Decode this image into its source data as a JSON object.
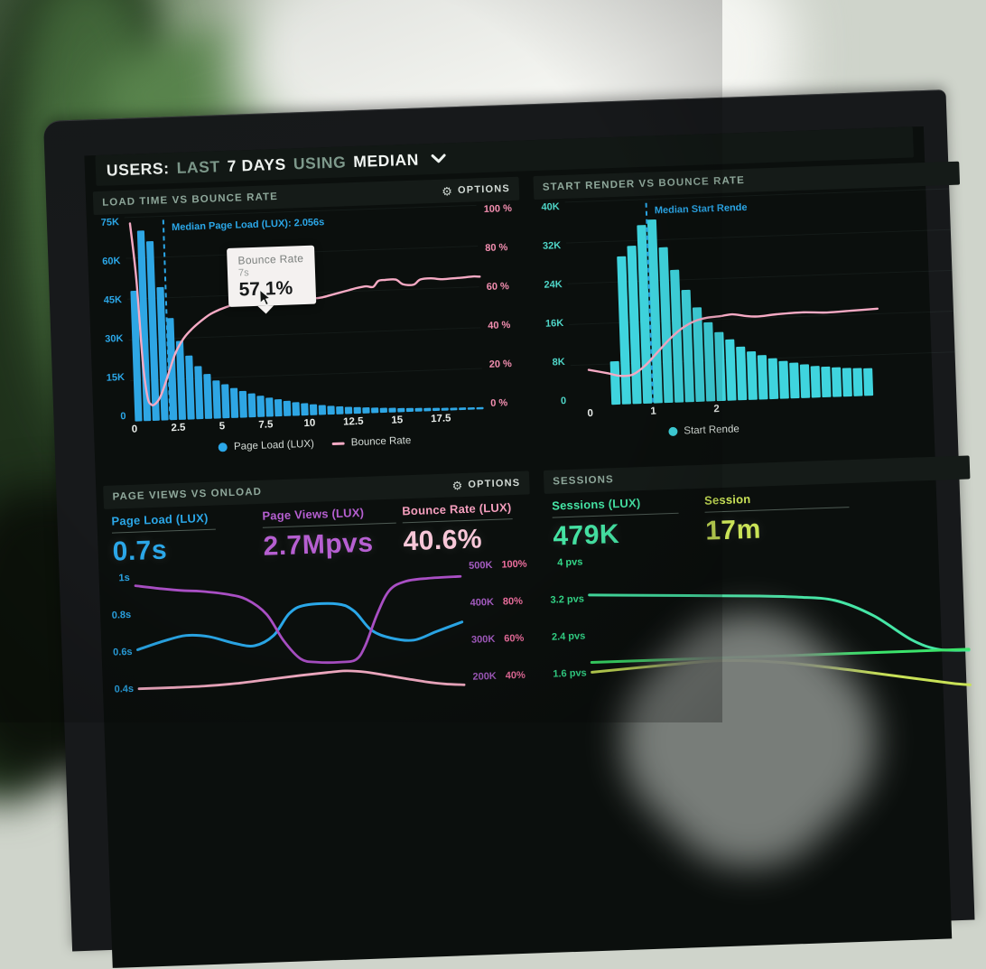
{
  "ui": {
    "options_label": "OPTIONS"
  },
  "header": {
    "users": "USERS:",
    "last": "LAST",
    "days": "7 DAYS",
    "using": "USING",
    "median": "MEDIAN"
  },
  "colors": {
    "blue": "#2BA7E8",
    "cyan": "#3FD4DE",
    "teal_label": "#4FD6C8",
    "pink_line": "#F6AAC4",
    "pink_label": "#F48FB1",
    "purple": "#B05FC4",
    "purple_label": "#A55CC2",
    "magenta_pct": "#EE6F9F",
    "mint": "#46E6A6",
    "green_flat": "#3BE36B",
    "lime": "#C9E257",
    "title_text": "#8FA89B",
    "screen_bg": "#0B0F0D",
    "panel_header_bg": "#151B18"
  },
  "panels": {
    "load_time": {
      "title": "LOAD TIME VS BOUNCE RATE",
      "y_left": [
        "75K",
        "60K",
        "45K",
        "30K",
        "15K",
        "0"
      ],
      "y_right": [
        "100 %",
        "80 %",
        "60 %",
        "40 %",
        "20 %",
        "0 %"
      ],
      "median_label": "Median Page Load (LUX): 2.056s",
      "tooltip": {
        "title": "Bounce Rate",
        "time": "7s",
        "value": "57.1%"
      },
      "legend": [
        {
          "label": "Page Load (LUX)",
          "color": "#2BA7E8",
          "marker": "dot"
        },
        {
          "label": "Bounce Rate",
          "color": "#F6AAC4",
          "marker": "line"
        }
      ],
      "chart_data": {
        "type": "bar+line",
        "x_unit": "seconds",
        "x0": 0,
        "bin": 0.5,
        "ppu": 19.4,
        "off": 3,
        "pad": 34,
        "ymax": 75,
        "grid": 5,
        "bar_color": "#2EA6E4",
        "bars": [
          48,
          70,
          66,
          49,
          37.5,
          29,
          23.5,
          19.5,
          16.5,
          14,
          12.5,
          11,
          9.8,
          8.8,
          7.8,
          7,
          6.3,
          5.6,
          5,
          4.5,
          4,
          3.6,
          3.2,
          2.9,
          2.6,
          2.4,
          2.2,
          2,
          1.8,
          1.7,
          1.5,
          1.4,
          1.3,
          1.2,
          1.1,
          1,
          0.95,
          0.9,
          0.85,
          0.8
        ],
        "line_color": "#F6AAC4",
        "line_max": 100,
        "line": [
          [
            0.15,
            97
          ],
          [
            0.4,
            70
          ],
          [
            0.6,
            30
          ],
          [
            0.8,
            12
          ],
          [
            1,
            8
          ],
          [
            1.2,
            8
          ],
          [
            1.5,
            11
          ],
          [
            1.8,
            17
          ],
          [
            2.1,
            24
          ],
          [
            2.5,
            33
          ],
          [
            3,
            40
          ],
          [
            3.5,
            44.5
          ],
          [
            4,
            48
          ],
          [
            4.5,
            51
          ],
          [
            5,
            53
          ],
          [
            5.5,
            54.5
          ],
          [
            6,
            55.8
          ],
          [
            6.5,
            56.6
          ],
          [
            7,
            57.1
          ],
          [
            7.5,
            57.6
          ],
          [
            8,
            58
          ],
          [
            8.5,
            58.2
          ],
          [
            9,
            58.2
          ],
          [
            9.5,
            58
          ],
          [
            10,
            57.6
          ],
          [
            10.5,
            57.2
          ],
          [
            11,
            57.6
          ],
          [
            11.5,
            58.6
          ],
          [
            12,
            59.6
          ],
          [
            12.5,
            60.6
          ],
          [
            13,
            61.6
          ],
          [
            13.5,
            62.2
          ],
          [
            13.9,
            61.8
          ],
          [
            14.2,
            64.6
          ],
          [
            14.6,
            65
          ],
          [
            15.2,
            65
          ],
          [
            15.6,
            62.6
          ],
          [
            16.2,
            62.2
          ],
          [
            16.6,
            64.6
          ],
          [
            17.2,
            65
          ],
          [
            17.8,
            64.4
          ],
          [
            18.4,
            64.6
          ],
          [
            19,
            64.8
          ],
          [
            19.6,
            65.2
          ],
          [
            20,
            65
          ]
        ],
        "median": {
          "x": 2.056
        },
        "median_color": "#2BA7E8",
        "xticks": [
          {
            "v": 0,
            "label": "0"
          },
          {
            "v": 2.5,
            "label": "2.5"
          },
          {
            "v": 5,
            "label": "5"
          },
          {
            "v": 7.5,
            "label": "7.5"
          },
          {
            "v": 10,
            "label": "10"
          },
          {
            "v": 12.5,
            "label": "12.5"
          },
          {
            "v": 15,
            "label": "15"
          },
          {
            "v": 17.5,
            "label": "17.5"
          }
        ]
      }
    },
    "start_render": {
      "title": "START RENDER VS BOUNCE RATE",
      "y_left": [
        "40K",
        "32K",
        "24K",
        "16K",
        "8K",
        "0"
      ],
      "median_label": "Median Start Rende",
      "legend": [
        {
          "label": "Start Rende",
          "color": "#3FD4DE",
          "marker": "dot"
        }
      ],
      "chart_data": {
        "type": "bar+line",
        "x_unit": "seconds",
        "x0": 0.33,
        "bin": 0.1667,
        "ppu": 70,
        "off": 20,
        "pad": 34,
        "ymax": 40,
        "grid": 5,
        "bar_color": "#3FD4DE",
        "bars": [
          8.5,
          29,
          31,
          35,
          36,
          30.5,
          26,
          22,
          18.5,
          15.5,
          13.5,
          12,
          10.5,
          9.5,
          8.7,
          8,
          7.4,
          7,
          6.6,
          6.2,
          6,
          5.8,
          5.6,
          5.5,
          5.4
        ],
        "line_color": "#F6AAC4",
        "line_max": 40,
        "line": [
          [
            0,
            7
          ],
          [
            0.3,
            6.2
          ],
          [
            0.5,
            5.6
          ],
          [
            0.7,
            5.8
          ],
          [
            0.9,
            7.5
          ],
          [
            1.1,
            10
          ],
          [
            1.3,
            12.5
          ],
          [
            1.5,
            14.5
          ],
          [
            1.7,
            15.8
          ],
          [
            1.9,
            16.4
          ],
          [
            2.1,
            16.6
          ],
          [
            2.3,
            16.9
          ],
          [
            2.5,
            16.5
          ],
          [
            2.7,
            16.3
          ],
          [
            3,
            16.6
          ],
          [
            3.4,
            16.8
          ],
          [
            3.8,
            16.6
          ],
          [
            4.2,
            16.8
          ],
          [
            4.6,
            17
          ]
        ],
        "median": {
          "x": 1.0
        },
        "median_color": "#2BA7E8",
        "xticks": [
          {
            "v": 0,
            "label": "0"
          },
          {
            "v": 1,
            "label": "1"
          },
          {
            "v": 2,
            "label": "2"
          }
        ]
      }
    },
    "page_views": {
      "title": "PAGE VIEWS VS ONLOAD",
      "stats": [
        {
          "label": "Page Load (LUX)",
          "value": "0.7s",
          "color": "#2BA7E8"
        },
        {
          "label": "Page Views (LUX)",
          "value": "2.7Mpvs",
          "color": "#B65FD1"
        },
        {
          "label": "Bounce Rate (LUX)",
          "value": "40.6%",
          "color": "#F8C7D8"
        }
      ],
      "y_left": [
        "1s",
        "0.8s",
        "0.6s",
        "0.4s"
      ],
      "y_right_k": [
        "500K",
        "400K",
        "300K",
        "200K"
      ],
      "y_right_pct": [
        "100%",
        "80%",
        "60%",
        "40%"
      ],
      "chart_data": {
        "type": "line",
        "series": [
          {
            "name": "Page Load (LUX)",
            "color": "#2AA7E8",
            "ymin": 0.305,
            "ymax": 1.005,
            "w": 3,
            "points": [
              [
                0,
                0.6
              ],
              [
                0.08,
                0.64
              ],
              [
                0.15,
                0.665
              ],
              [
                0.22,
                0.655
              ],
              [
                0.3,
                0.615
              ],
              [
                0.36,
                0.6
              ],
              [
                0.42,
                0.65
              ],
              [
                0.47,
                0.76
              ],
              [
                0.52,
                0.8
              ],
              [
                0.62,
                0.8
              ],
              [
                0.67,
                0.76
              ],
              [
                0.72,
                0.66
              ],
              [
                0.78,
                0.615
              ],
              [
                0.85,
                0.6
              ],
              [
                0.92,
                0.64
              ],
              [
                1,
                0.685
              ]
            ]
          },
          {
            "name": "Page Views (LUX)",
            "color": "#A94FC4",
            "ymin": 153,
            "ymax": 502,
            "w": 2.8,
            "points": [
              [
                0,
                465
              ],
              [
                0.08,
                455
              ],
              [
                0.15,
                448
              ],
              [
                0.2,
                445
              ],
              [
                0.28,
                435
              ],
              [
                0.34,
                420
              ],
              [
                0.4,
                380
              ],
              [
                0.45,
                310
              ],
              [
                0.5,
                262
              ],
              [
                0.55,
                252
              ],
              [
                0.62,
                250
              ],
              [
                0.67,
                255
              ],
              [
                0.7,
                290
              ],
              [
                0.74,
                370
              ],
              [
                0.78,
                430
              ],
              [
                0.83,
                452
              ],
              [
                0.9,
                458
              ],
              [
                1,
                460
              ]
            ]
          },
          {
            "name": "Bounce Rate (LUX)",
            "color": "#F6AEC6",
            "ymin": 30.7,
            "ymax": 100.5,
            "w": 2.8,
            "points": [
              [
                0,
                40
              ],
              [
                0.1,
                40
              ],
              [
                0.2,
                40.2
              ],
              [
                0.3,
                41
              ],
              [
                0.4,
                42.5
              ],
              [
                0.5,
                44
              ],
              [
                0.58,
                45
              ],
              [
                0.64,
                45.5
              ],
              [
                0.7,
                44.5
              ],
              [
                0.76,
                42.5
              ],
              [
                0.82,
                40.5
              ],
              [
                0.88,
                38.5
              ],
              [
                0.94,
                37
              ],
              [
                1,
                36.2
              ]
            ]
          }
        ]
      }
    },
    "sessions": {
      "title": "SESSIONS",
      "stats": [
        {
          "label": "Sessions (LUX)",
          "value": "479K",
          "color": "#46E6A6"
        },
        {
          "label": "Session",
          "value": "17m",
          "color": "#C9E257"
        }
      ],
      "y_left": [
        "4 pvs",
        "3.2 pvs",
        "2.4 pvs",
        "1.6 pvs"
      ],
      "chart_data": {
        "type": "line",
        "series": [
          {
            "name": "Sessions (LUX)",
            "color": "#46E6A6",
            "ymin": 1.15,
            "ymax": 4.04,
            "w": 3,
            "points": [
              [
                0,
                3.2
              ],
              [
                0.15,
                3.15
              ],
              [
                0.3,
                3.1
              ],
              [
                0.45,
                3.05
              ],
              [
                0.55,
                3
              ],
              [
                0.65,
                2.9
              ],
              [
                0.75,
                2.55
              ],
              [
                0.85,
                2
              ],
              [
                0.92,
                1.78
              ],
              [
                1,
                1.74
              ]
            ]
          },
          {
            "name": "line-2",
            "color": "#3BE36B",
            "ymin": 1.15,
            "ymax": 4.04,
            "w": 3,
            "points": [
              [
                0,
                1.76
              ],
              [
                1,
                1.76
              ]
            ]
          },
          {
            "name": "line-3",
            "color": "#C9E257",
            "ymin": 1.15,
            "ymax": 4.04,
            "w": 3,
            "points": [
              [
                0,
                1.55
              ],
              [
                0.2,
                1.65
              ],
              [
                0.35,
                1.7
              ],
              [
                0.5,
                1.62
              ],
              [
                0.65,
                1.45
              ],
              [
                0.8,
                1.25
              ],
              [
                0.95,
                1.05
              ],
              [
                1,
                1
              ]
            ]
          }
        ]
      }
    }
  }
}
